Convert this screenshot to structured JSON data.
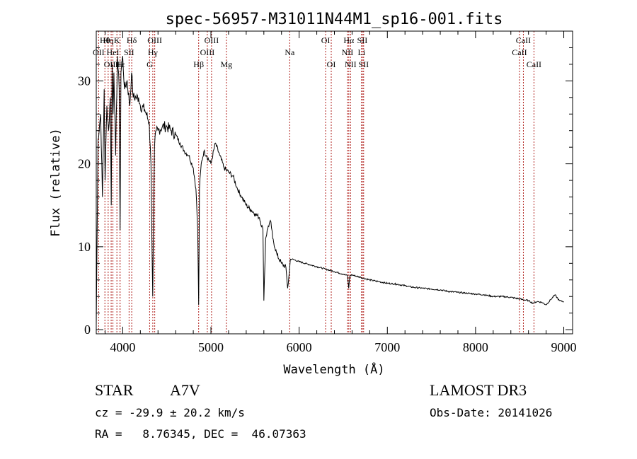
{
  "chart_data": {
    "type": "line",
    "title": "spec-56957-M31011N44M1_sp16-001.fits",
    "xlabel": "Wavelength (Å)",
    "ylabel": "Flux (relative)",
    "xlim": [
      3700,
      9100
    ],
    "ylim": [
      -0.5,
      36
    ],
    "x_ticks": [
      4000,
      5000,
      6000,
      7000,
      8000,
      9000
    ],
    "x_tick_labels": [
      "4000",
      "5000",
      "6000",
      "7000",
      "8000",
      "9000"
    ],
    "y_ticks": [
      0,
      10,
      20,
      30
    ],
    "y_tick_labels": [
      "0",
      "10",
      "20",
      "30"
    ],
    "series": [
      {
        "name": "spectrum",
        "x": [
          3700,
          3720,
          3750,
          3770,
          3790,
          3800,
          3820,
          3840,
          3860,
          3870,
          3880,
          3890,
          3900,
          3920,
          3940,
          3960,
          3970,
          3980,
          4000,
          4020,
          4050,
          4080,
          4100,
          4120,
          4150,
          4180,
          4200,
          4250,
          4300,
          4320,
          4340,
          4360,
          4380,
          4400,
          4450,
          4500,
          4550,
          4600,
          4650,
          4700,
          4750,
          4800,
          4830,
          4850,
          4861,
          4870,
          4890,
          4920,
          4950,
          5000,
          5050,
          5100,
          5150,
          5200,
          5250,
          5300,
          5350,
          5400,
          5450,
          5500,
          5550,
          5590,
          5600,
          5620,
          5650,
          5680,
          5700,
          5750,
          5800,
          5850,
          5870,
          5890,
          5900,
          5920,
          5950,
          6000,
          6100,
          6200,
          6300,
          6400,
          6500,
          6550,
          6562,
          6575,
          6600,
          6700,
          6800,
          6900,
          7000,
          7100,
          7200,
          7300,
          7400,
          7500,
          7600,
          7700,
          7800,
          7900,
          8000,
          8100,
          8200,
          8300,
          8400,
          8500,
          8600,
          8650,
          8700,
          8750,
          8800,
          8850,
          8900,
          8950,
          9000
        ],
        "values": [
          0.5,
          23,
          26,
          16,
          29,
          18,
          27,
          24,
          28,
          15,
          32,
          26,
          31,
          21,
          33,
          29,
          12,
          31,
          33,
          29,
          30,
          27,
          31,
          28,
          28,
          28,
          27,
          26.5,
          25,
          20,
          4,
          22,
          24,
          24,
          24.5,
          24.5,
          24,
          23.5,
          22.5,
          21.5,
          21,
          19.5,
          17,
          12,
          3,
          17,
          20,
          21.5,
          21,
          20,
          22.5,
          21,
          19.5,
          19,
          18.5,
          17,
          16,
          15,
          14.5,
          14,
          13.5,
          12,
          3.5,
          11,
          12.5,
          13,
          11,
          9,
          8,
          7.5,
          5,
          7,
          8.5,
          8.5,
          8.4,
          8.2,
          7.9,
          7.6,
          7.3,
          7.0,
          6.7,
          6.5,
          5.0,
          6.5,
          6.6,
          6.3,
          6.0,
          5.8,
          5.6,
          5.5,
          5.3,
          5.1,
          5.0,
          4.9,
          4.8,
          4.6,
          4.5,
          4.4,
          4.3,
          4.2,
          4.0,
          4.0,
          3.9,
          3.7,
          3.5,
          3.2,
          3.4,
          3.3,
          3.0,
          3.6,
          4.2,
          3.5,
          3.4
        ]
      }
    ],
    "lines": [
      {
        "label": "Hθ",
        "x": 3798,
        "row": 1
      },
      {
        "label": "OII",
        "x": 3727,
        "row": 2
      },
      {
        "label": "OIII",
        "x": 3869,
        "row": 3
      },
      {
        "label": "Hη",
        "x": 3835,
        "row": 1
      },
      {
        "label": "K",
        "x": 3934,
        "row": 1
      },
      {
        "label": "HeI",
        "x": 3889,
        "row": 2
      },
      {
        "label": "Hε",
        "x": 3970,
        "row": 3
      },
      {
        "label": "H",
        "x": 3969,
        "row": 3
      },
      {
        "label": "SII",
        "x": 4072,
        "row": 2
      },
      {
        "label": "Hδ",
        "x": 4102,
        "row": 1
      },
      {
        "label": "OIII",
        "x": 4363,
        "row": 1
      },
      {
        "label": "Hγ",
        "x": 4341,
        "row": 2
      },
      {
        "label": "G",
        "x": 4305,
        "row": 3
      },
      {
        "label": "Hβ",
        "x": 4861,
        "row": 3
      },
      {
        "label": "OIII",
        "x": 5007,
        "row": 1
      },
      {
        "label": "OIII",
        "x": 4959,
        "row": 2
      },
      {
        "label": "Mg",
        "x": 5175,
        "row": 3
      },
      {
        "label": "Na",
        "x": 5893,
        "row": 2
      },
      {
        "label": "OI",
        "x": 6300,
        "row": 1
      },
      {
        "label": "OI",
        "x": 6364,
        "row": 3
      },
      {
        "label": "Hα",
        "x": 6563,
        "row": 1
      },
      {
        "label": "SII",
        "x": 6716,
        "row": 1
      },
      {
        "label": "NII",
        "x": 6548,
        "row": 2
      },
      {
        "label": "Li",
        "x": 6708,
        "row": 2
      },
      {
        "label": "NII",
        "x": 6583,
        "row": 3
      },
      {
        "label": "SII",
        "x": 6731,
        "row": 3
      },
      {
        "label": "CaII",
        "x": 8542,
        "row": 1
      },
      {
        "label": "CaII",
        "x": 8498,
        "row": 2
      },
      {
        "label": "CaII",
        "x": 8662,
        "row": 3
      }
    ]
  },
  "info": {
    "class_label": "STAR",
    "subclass": "A7V",
    "survey": "LAMOST DR3",
    "redshift": "cz = -29.9 ± 20.2 km/s",
    "obs_date": "Obs-Date: 20141026",
    "coords": "RA =   8.76345, DEC =  46.07363"
  },
  "colors": {
    "spectrum": "#000000",
    "line_markers": "#b0201c"
  }
}
